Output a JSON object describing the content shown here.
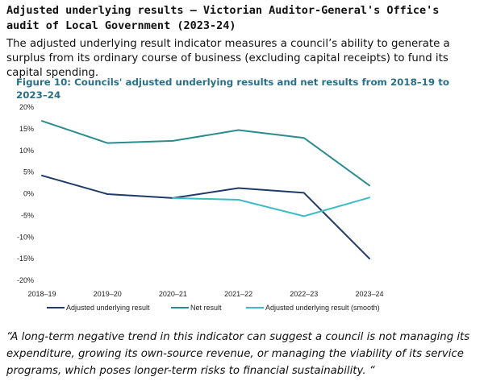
{
  "heading": "Adjusted underlying results – Victorian Auditor-General's Office's audit of Local Government (2023-24)",
  "intro": "The adjusted underlying result indicator measures a council’s ability to generate a surplus from its ordinary course of business (excluding capital receipts) to fund its capital spending.",
  "quote": "“A long-term negative trend in this indicator can suggest a council is not managing its expenditure, growing its own-source revenue, or managing the viability of its service programs, which poses longer-term risks to financial sustainability. “",
  "colors": {
    "adjusted": "#1f3a68",
    "net": "#2b8c8f",
    "smooth": "#3cbcc4",
    "title": "#2a6f88"
  },
  "chart_data": {
    "type": "line",
    "title": "Figure 10: Councils' adjusted underlying results and net results from 2018–19 to 2023–24",
    "xlabel": "",
    "ylabel": "",
    "categories": [
      "2018–19",
      "2019–20",
      "2020–21",
      "2021–22",
      "2022–23",
      "2023–24"
    ],
    "ylim": [
      -20,
      20
    ],
    "yticks": [
      20,
      15,
      10,
      5,
      0,
      -5,
      -10,
      -15,
      -20
    ],
    "ytick_labels": [
      "20%",
      "15%",
      "10%",
      "5%",
      "0%",
      "-5%",
      "-10%",
      "-15%",
      "-20%"
    ],
    "series": [
      {
        "name": "Adjusted underlying result",
        "color": "#1f3a68",
        "values": [
          4.2,
          -0.1,
          -1.0,
          1.3,
          0.2,
          -15.0
        ]
      },
      {
        "name": "Net result",
        "color": "#2b8c8f",
        "values": [
          16.8,
          11.7,
          12.2,
          14.7,
          12.9,
          1.9
        ]
      },
      {
        "name": "Adjusted underlying result (smooth)",
        "color": "#3cbcc4",
        "values": [
          null,
          null,
          -1.0,
          -1.4,
          -5.2,
          -0.9
        ]
      }
    ],
    "legend_position": "bottom",
    "grid": false
  }
}
